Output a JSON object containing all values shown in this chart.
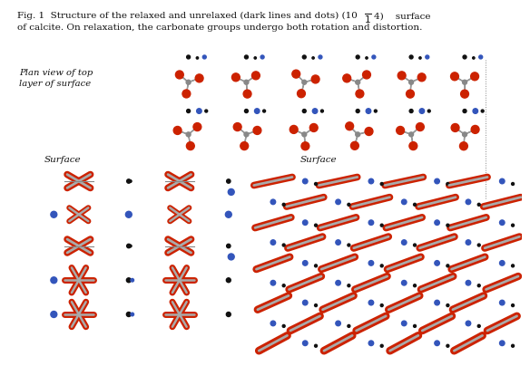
{
  "background_color": "#ffffff",
  "fig_width": 5.84,
  "fig_height": 4.04,
  "dpi": 100,
  "title_line1": "Fig. 1  Structure of the relaxed and unrelaxed (dark lines and dots) (10",
  "title_line2": "of calcite. On relaxation, the carbonate groups undergo both rotation and distortion.",
  "label_plan": "Plan view of top\nlayer of surface",
  "label_surface_left": "Surface",
  "label_surface_right": "Surface"
}
